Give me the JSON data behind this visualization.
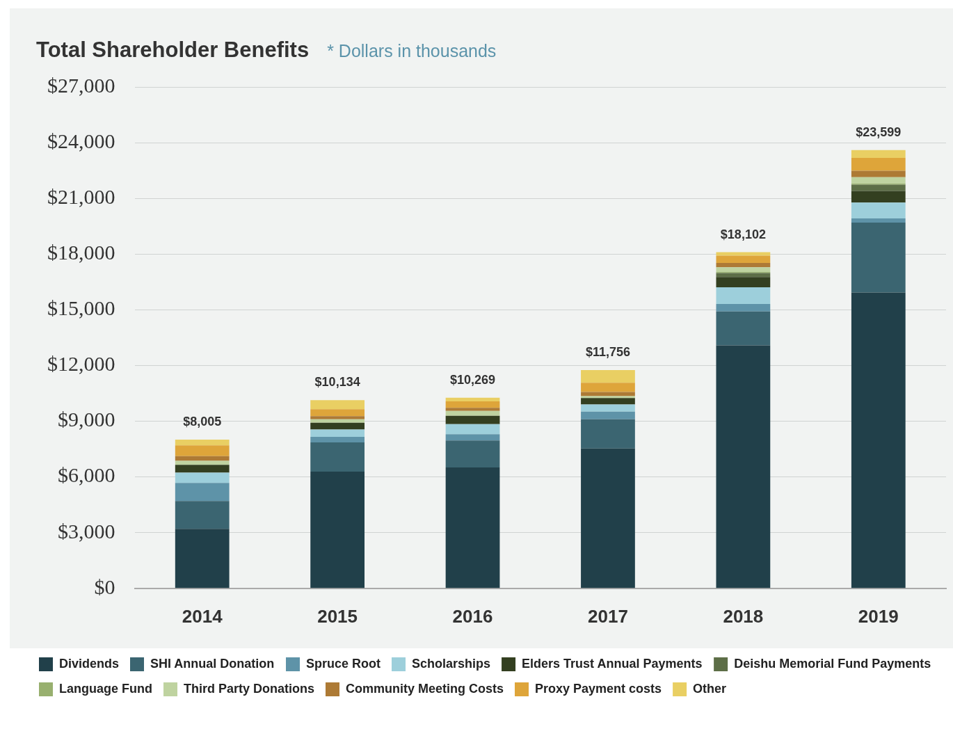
{
  "chart_data": {
    "type": "bar",
    "title": "Total Shareholder Benefits",
    "subtitle": "* Dollars in thousands",
    "categories": [
      "2014",
      "2015",
      "2016",
      "2017",
      "2018",
      "2019"
    ],
    "stacked": true,
    "grid": "y",
    "legend": "bottom",
    "ylim": [
      0,
      27000
    ],
    "yticks": [
      {
        "value": 0,
        "label": "$0"
      },
      {
        "value": 3000,
        "label": "$3,000"
      },
      {
        "value": 6000,
        "label": "$6,000"
      },
      {
        "value": 9000,
        "label": "$9,000"
      },
      {
        "value": 12000,
        "label": "$12,000"
      },
      {
        "value": 15000,
        "label": "$15,000"
      },
      {
        "value": 18000,
        "label": "$18,000"
      },
      {
        "value": 21000,
        "label": "$21,000"
      },
      {
        "value": 24000,
        "label": "$24,000"
      },
      {
        "value": 27000,
        "label": "$27,000"
      }
    ],
    "totals": [
      "$8,005",
      "$10,134",
      "$10,269",
      "$11,756",
      "$18,102",
      "$23,599"
    ],
    "series": [
      {
        "name": "Dividends",
        "color": "#21404a",
        "values": [
          3200,
          6290,
          6510,
          7530,
          13080,
          15930
        ]
      },
      {
        "name": "SHI Annual Donation",
        "color": "#3b6571",
        "values": [
          1500,
          1570,
          1450,
          1570,
          1830,
          3770
        ]
      },
      {
        "name": "Spruce Root",
        "color": "#5e93a8",
        "values": [
          980,
          300,
          340,
          420,
          400,
          220
        ]
      },
      {
        "name": "Scholarships",
        "color": "#9dcfdb",
        "values": [
          550,
          390,
          540,
          380,
          900,
          850
        ]
      },
      {
        "name": "Elders Trust Annual Payments",
        "color": "#333f20",
        "values": [
          420,
          370,
          450,
          350,
          550,
          630
        ]
      },
      {
        "name": "Deishu Memorial Fund Payments",
        "color": "#5d6e47",
        "values": [
          0,
          0,
          0,
          0,
          220,
          340
        ]
      },
      {
        "name": "Language Fund",
        "color": "#98b06f",
        "values": [
          0,
          0,
          0,
          0,
          60,
          60
        ]
      },
      {
        "name": "Third Party Donations",
        "color": "#bfd3a0",
        "values": [
          220,
          180,
          260,
          100,
          250,
          340
        ]
      },
      {
        "name": "Community Meeting Costs",
        "color": "#ad7a35",
        "values": [
          250,
          170,
          170,
          220,
          230,
          350
        ]
      },
      {
        "name": "Proxy Payment costs",
        "color": "#dea53a",
        "values": [
          580,
          380,
          350,
          500,
          400,
          690
        ]
      },
      {
        "name": "Other",
        "color": "#e9cf63",
        "values": [
          305,
          484,
          199,
          686,
          182,
          419
        ]
      }
    ]
  }
}
